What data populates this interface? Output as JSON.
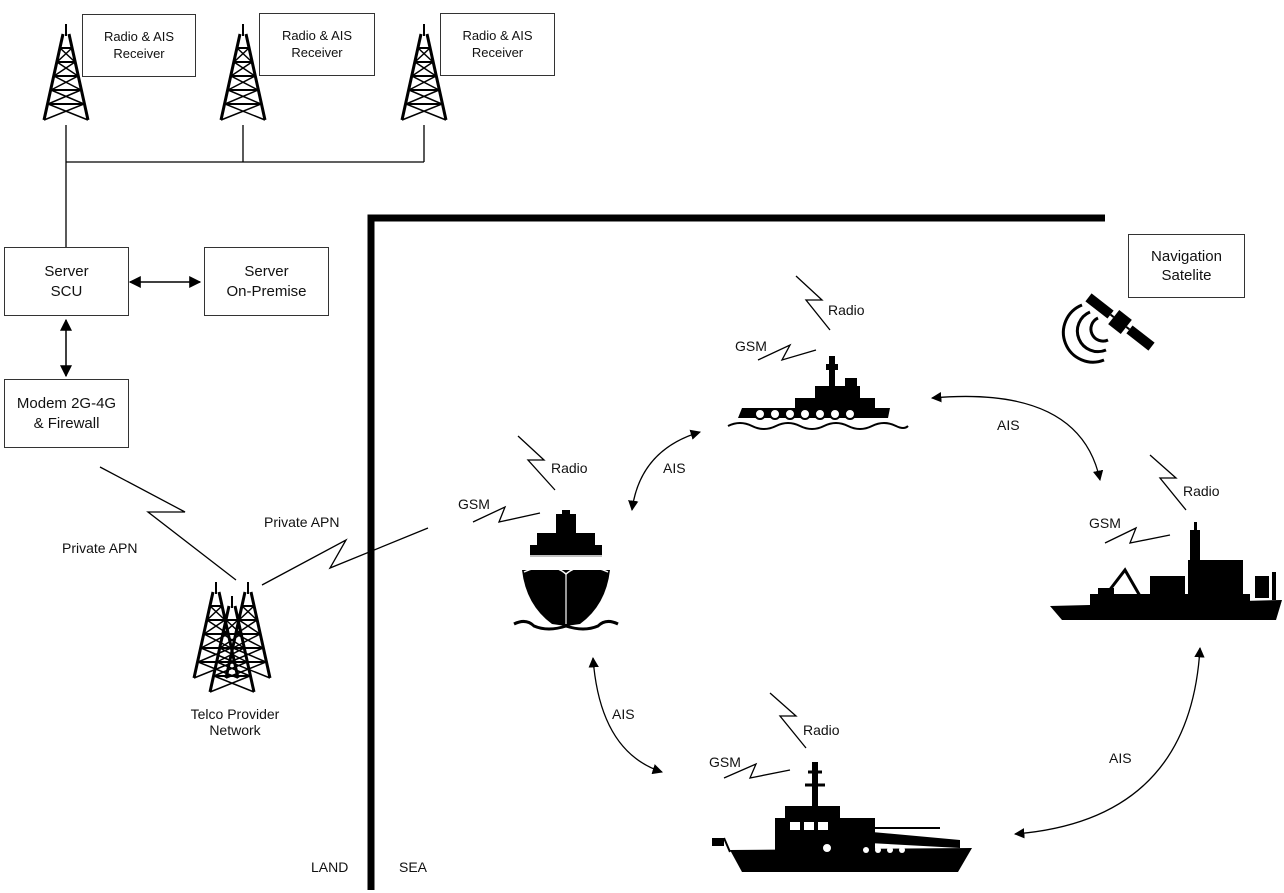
{
  "receivers": [
    {
      "line1": "Radio & AIS",
      "line2": "Receiver"
    },
    {
      "line1": "Radio & AIS",
      "line2": "Receiver"
    },
    {
      "line1": "Radio & AIS",
      "line2": "Receiver"
    }
  ],
  "server_scu": {
    "line1": "Server",
    "line2": "SCU"
  },
  "server_onprem": {
    "line1": "Server",
    "line2": "On-Premise"
  },
  "modem": {
    "line1": "Modem 2G-4G",
    "line2": "& Firewall"
  },
  "telco": {
    "line1": "Telco Provider",
    "line2": "Network"
  },
  "private_apn_left": "Private APN",
  "private_apn_right": "Private APN",
  "nav_satellite": {
    "line1": "Navigation",
    "line2": "Satelite"
  },
  "land_label": "LAND",
  "sea_label": "SEA",
  "ships": {
    "tug": {
      "radio": "Radio",
      "gsm": "GSM"
    },
    "cargo": {
      "radio": "Radio",
      "gsm": "GSM"
    },
    "research": {
      "radio": "Radio",
      "gsm": "GSM"
    },
    "lifeboat": {
      "radio": "Radio",
      "gsm": "GSM"
    }
  },
  "ais_links": {
    "cargo_tug": "AIS",
    "tug_research": "AIS",
    "cargo_lifeboat": "AIS",
    "lifeboat_research": "AIS"
  }
}
